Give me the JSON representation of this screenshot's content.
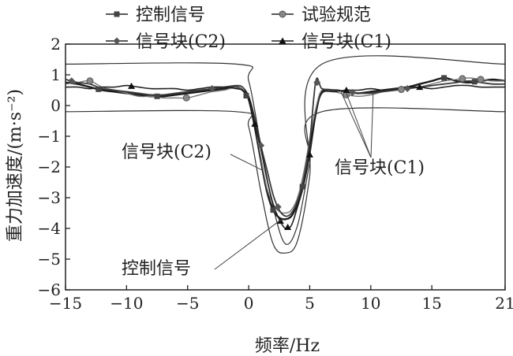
{
  "chart_data": {
    "type": "line",
    "xlabel": "频率/Hz",
    "ylabel": "重力加速度/(m·s⁻²)",
    "xlim": [
      -15,
      21
    ],
    "ylim": [
      -6,
      2
    ],
    "xticks": [
      -15,
      -10,
      -5,
      0,
      5,
      10,
      15,
      21
    ],
    "yticks": [
      2,
      1,
      0,
      -1,
      -2,
      -3,
      -4,
      -5,
      -6
    ],
    "xtick_labels": [
      "−15",
      "−10",
      "−5",
      "0",
      "5",
      "10",
      "15",
      "21"
    ],
    "ytick_labels": [
      "2",
      "1",
      "0",
      "−1",
      "−2",
      "−3",
      "−4",
      "−5",
      "−6"
    ],
    "legend_position": "top",
    "series": [
      {
        "name": "控制信号",
        "marker": "square",
        "x": [
          -15,
          -14,
          -13,
          -12,
          -11,
          -10,
          -9,
          -8,
          -7,
          -6,
          -5,
          -4,
          -3,
          -2,
          -1,
          -0.5,
          0,
          0.5,
          1,
          1.5,
          2,
          2.5,
          3,
          3.5,
          4,
          4.5,
          5,
          5.5,
          6,
          7,
          8,
          9,
          10,
          11,
          12,
          13,
          14,
          15,
          16,
          17,
          18,
          19,
          20,
          21
        ],
        "y": [
          0.75,
          0.7,
          0.6,
          0.5,
          0.45,
          0.4,
          0.35,
          0.3,
          0.3,
          0.35,
          0.4,
          0.45,
          0.5,
          0.55,
          0.6,
          0.5,
          0.2,
          -0.7,
          -1.8,
          -2.8,
          -3.4,
          -3.65,
          -3.7,
          -3.6,
          -3.2,
          -2.5,
          -1.3,
          -0.2,
          0.45,
          0.5,
          0.45,
          0.4,
          0.45,
          0.5,
          0.55,
          0.6,
          0.7,
          0.8,
          0.9,
          0.8,
          0.75,
          0.8,
          0.85,
          0.8
        ]
      },
      {
        "name": "试验规范",
        "marker": "circle",
        "x": [
          -15,
          -14,
          -13,
          -12,
          -11,
          -10,
          -9,
          -8,
          -7,
          -6,
          -5,
          -4,
          -3,
          -2,
          -1,
          -0.5,
          0,
          0.5,
          1,
          1.5,
          2,
          2.5,
          3,
          3.5,
          4,
          4.5,
          5,
          5.5,
          6,
          7,
          8,
          9,
          10,
          11,
          12,
          13,
          14,
          15,
          16,
          17,
          18,
          19,
          20,
          21
        ],
        "y": [
          0.7,
          0.75,
          0.8,
          0.6,
          0.5,
          0.4,
          0.3,
          0.3,
          0.25,
          0.25,
          0.25,
          0.35,
          0.45,
          0.5,
          0.6,
          0.5,
          0.3,
          -0.5,
          -1.7,
          -2.7,
          -3.2,
          -3.45,
          -3.5,
          -3.4,
          -3.0,
          -2.2,
          -1.1,
          -0.1,
          0.5,
          0.45,
          0.35,
          0.3,
          0.35,
          0.45,
          0.5,
          0.55,
          0.6,
          0.7,
          0.8,
          0.85,
          0.9,
          0.85,
          0.8,
          0.8
        ]
      },
      {
        "name": "信号块(C2)",
        "marker": "diamond",
        "x": [
          -15,
          -14,
          -13,
          -12,
          -11,
          -10,
          -9,
          -8,
          -7,
          -6,
          -5,
          -4,
          -3,
          -2,
          -1,
          -0.5,
          0,
          0.5,
          1,
          1.5,
          2,
          2.5,
          3,
          3.5,
          4,
          4.5,
          5,
          5.5,
          6,
          7,
          8,
          9,
          10,
          11,
          12,
          13,
          14,
          15,
          16,
          17,
          18,
          19,
          20,
          21
        ],
        "y": [
          0.85,
          0.75,
          0.7,
          0.55,
          0.5,
          0.45,
          0.4,
          0.35,
          0.35,
          0.4,
          0.45,
          0.5,
          0.55,
          0.6,
          0.65,
          0.6,
          0.3,
          -0.4,
          -1.3,
          -2.1,
          -2.9,
          -3.4,
          -3.6,
          -3.5,
          -3.1,
          -2.4,
          -1.2,
          0.8,
          0.55,
          0.5,
          0.45,
          0.4,
          0.4,
          0.45,
          0.5,
          0.55,
          0.6,
          0.65,
          0.7,
          0.75,
          0.8,
          0.75,
          0.7,
          0.7
        ]
      },
      {
        "name": "信号块(C1)",
        "marker": "triangle",
        "x": [
          -15,
          -14,
          -13,
          -12,
          -11,
          -10,
          -9,
          -8,
          -7,
          -6,
          -5,
          -4,
          -3,
          -2,
          -1,
          -0.5,
          0,
          0.5,
          1,
          1.5,
          2,
          2.5,
          3,
          3.5,
          4,
          4.5,
          5,
          5.5,
          6,
          7,
          8,
          9,
          10,
          11,
          12,
          13,
          14,
          15,
          16,
          17,
          18,
          19,
          20,
          21
        ],
        "y": [
          0.6,
          0.6,
          0.55,
          0.6,
          0.6,
          0.65,
          0.6,
          0.55,
          0.55,
          0.55,
          0.5,
          0.55,
          0.6,
          0.6,
          0.55,
          0.5,
          0.3,
          -0.6,
          -1.4,
          -2.4,
          -3.2,
          -3.7,
          -4.0,
          -3.9,
          -3.3,
          -2.6,
          -1.6,
          -0.3,
          0.4,
          0.45,
          0.5,
          0.5,
          0.55,
          0.5,
          0.55,
          0.6,
          0.6,
          0.55,
          0.6,
          0.65,
          0.65,
          0.6,
          0.6,
          0.6
        ]
      }
    ],
    "tolerance_lines": [
      {
        "x": [
          -15,
          -1,
          0,
          1,
          2,
          3,
          4,
          5,
          6,
          21
        ],
        "y": [
          1.35,
          1.35,
          0.8,
          -1.3,
          -3.3,
          -4.5,
          -3.9,
          -1.9,
          -0.2,
          -0.2
        ]
      },
      {
        "x": [
          -15,
          -1,
          0,
          1,
          2,
          3,
          4,
          5,
          6,
          21
        ],
        "y": [
          -0.2,
          -0.2,
          -0.7,
          -2.8,
          -4.5,
          -4.8,
          -4.4,
          -2.3,
          1.35,
          1.35
        ]
      }
    ],
    "annotations": [
      {
        "text": "信号块(C2)",
        "target_series": "信号块(C2)",
        "target": [
          1.1,
          -2.1
        ]
      },
      {
        "text": "控制信号",
        "target_series": "控制信号",
        "target": [
          2.7,
          -3.7
        ]
      },
      {
        "text": "信号块(C1)",
        "target_series": "信号块(C1)",
        "targets": [
          [
            7.5,
            0.5
          ],
          [
            8.0,
            0.4
          ],
          [
            10.2,
            0.45
          ]
        ]
      }
    ]
  }
}
